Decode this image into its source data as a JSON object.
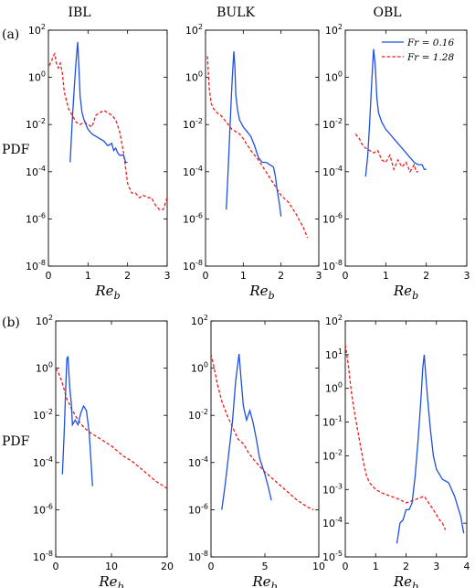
{
  "figure": {
    "column_titles": [
      "IBL",
      "BULK",
      "OBL"
    ],
    "row_labels": [
      "(a)",
      "(b)"
    ],
    "ylabel": "PDF",
    "xlabel_main": "Re",
    "xlabel_sub": "b",
    "colors": {
      "fr016": "#1f4fe0",
      "fr128": "#ee1c1c"
    },
    "legend": [
      {
        "name": "Fr = 0.16",
        "color": "#1f4fe0",
        "dash": "solid"
      },
      {
        "name": "Fr = 1.28",
        "color": "#ee1c1c",
        "dash": "dashed"
      }
    ]
  },
  "chart_data": [
    {
      "type": "line",
      "panel": "a-IBL",
      "xlim": [
        0,
        3
      ],
      "ylim": [
        -8,
        2
      ],
      "yscale": "log",
      "xticks": [
        "0",
        "1",
        "2",
        "3"
      ],
      "yticks": [
        "-8",
        "-6",
        "-4",
        "-2",
        "0",
        "2"
      ],
      "series": [
        {
          "name": "Fr = 0.16",
          "x": [
            0.55,
            0.6,
            0.65,
            0.7,
            0.74,
            0.77,
            0.8,
            0.85,
            0.9,
            1.0,
            1.1,
            1.2,
            1.3,
            1.4,
            1.5,
            1.6,
            1.65,
            1.7,
            1.75,
            1.8,
            1.9,
            1.95,
            2.0
          ],
          "y": [
            -3.6,
            -1.9,
            -0.5,
            0.7,
            1.5,
            0.4,
            -0.8,
            -1.5,
            -1.8,
            -2.2,
            -2.4,
            -2.5,
            -2.6,
            -2.7,
            -2.9,
            -2.8,
            -3.1,
            -3.0,
            -3.2,
            -3.3,
            -3.3,
            -3.6,
            -3.6
          ]
        },
        {
          "name": "Fr = 1.28",
          "x": [
            0.02,
            0.08,
            0.12,
            0.16,
            0.2,
            0.25,
            0.3,
            0.35,
            0.4,
            0.5,
            0.6,
            0.7,
            0.8,
            0.9,
            1.0,
            1.1,
            1.2,
            1.3,
            1.4,
            1.5,
            1.6,
            1.7,
            1.8,
            1.9,
            2.0,
            2.1,
            2.2,
            2.3,
            2.4,
            2.5,
            2.6,
            2.7,
            2.8,
            2.9,
            3.0
          ],
          "y": [
            0.5,
            0.7,
            0.9,
            1.0,
            0.6,
            0.4,
            0.6,
            0.2,
            -0.6,
            -1.3,
            -1.6,
            -1.9,
            -2.0,
            -1.9,
            -2.0,
            -2.1,
            -1.6,
            -1.5,
            -1.4,
            -1.5,
            -1.6,
            -1.8,
            -2.3,
            -3.2,
            -4.5,
            -4.9,
            -4.9,
            -5.1,
            -5.0,
            -5.1,
            -5.1,
            -5.4,
            -5.6,
            -5.6,
            -5.1
          ]
        }
      ]
    },
    {
      "type": "line",
      "panel": "a-BULK",
      "xlim": [
        0,
        3
      ],
      "ylim": [
        -8,
        2
      ],
      "yscale": "log",
      "xticks": [
        "0",
        "1",
        "2",
        "3"
      ],
      "yticks": [
        "-8",
        "-6",
        "-4",
        "-2",
        "0",
        "2"
      ],
      "series": [
        {
          "name": "Fr = 0.16",
          "x": [
            0.55,
            0.6,
            0.65,
            0.7,
            0.75,
            0.78,
            0.8,
            0.85,
            0.9,
            1.0,
            1.1,
            1.2,
            1.3,
            1.4,
            1.5,
            1.6,
            1.7,
            1.8,
            1.85,
            1.9,
            1.95,
            2.0
          ],
          "y": [
            -5.6,
            -3.9,
            -2.0,
            -0.3,
            1.1,
            0.4,
            -0.7,
            -1.4,
            -1.8,
            -2.1,
            -2.3,
            -2.5,
            -2.9,
            -3.4,
            -3.6,
            -3.6,
            -3.7,
            -3.8,
            -4.2,
            -4.8,
            -5.3,
            -5.9
          ]
        },
        {
          "name": "Fr = 1.28",
          "x": [
            0.05,
            0.1,
            0.15,
            0.2,
            0.3,
            0.4,
            0.5,
            0.6,
            0.7,
            0.8,
            0.9,
            1.0,
            1.2,
            1.4,
            1.6,
            1.8,
            2.0,
            2.2,
            2.4,
            2.5,
            2.6,
            2.7
          ],
          "y": [
            0.9,
            -0.5,
            -1.1,
            -1.3,
            -1.5,
            -1.6,
            -1.8,
            -2.0,
            -2.2,
            -2.3,
            -2.4,
            -2.6,
            -3.1,
            -3.5,
            -4.0,
            -4.5,
            -5.0,
            -5.3,
            -5.8,
            -6.1,
            -6.4,
            -6.8
          ]
        }
      ]
    },
    {
      "type": "line",
      "panel": "a-OBL",
      "xlim": [
        0,
        3
      ],
      "ylim": [
        -8,
        2
      ],
      "yscale": "log",
      "xticks": [
        "0",
        "1",
        "2",
        "3"
      ],
      "yticks": [
        "-8",
        "-6",
        "-4",
        "-2",
        "0",
        "2"
      ],
      "series": [
        {
          "name": "Fr = 0.16",
          "x": [
            0.5,
            0.55,
            0.6,
            0.65,
            0.7,
            0.74,
            0.78,
            0.82,
            0.9,
            1.0,
            1.1,
            1.2,
            1.3,
            1.4,
            1.5,
            1.6,
            1.7,
            1.8,
            1.9,
            1.95,
            2.0
          ],
          "y": [
            -4.2,
            -3.4,
            -2.0,
            -0.3,
            1.2,
            0.5,
            -0.9,
            -1.5,
            -1.9,
            -2.2,
            -2.4,
            -2.6,
            -2.8,
            -3.0,
            -3.2,
            -3.4,
            -3.6,
            -3.7,
            -3.7,
            -3.9,
            -3.9
          ]
        },
        {
          "name": "Fr = 1.28",
          "x": [
            0.25,
            0.3,
            0.35,
            0.4,
            0.5,
            0.6,
            0.7,
            0.8,
            0.9,
            1.0,
            1.1,
            1.2,
            1.3,
            1.4,
            1.5,
            1.6,
            1.7,
            1.75,
            1.8
          ],
          "y": [
            -2.4,
            -2.5,
            -2.6,
            -2.8,
            -3.0,
            -3.1,
            -3.2,
            -3.1,
            -3.5,
            -3.6,
            -3.3,
            -3.9,
            -3.5,
            -3.8,
            -3.6,
            -4.0,
            -3.7,
            -4.0,
            -4.0
          ]
        }
      ]
    },
    {
      "type": "line",
      "panel": "b-IBL",
      "xlim": [
        0,
        20
      ],
      "ylim": [
        -8,
        2
      ],
      "yscale": "log",
      "xticks": [
        "0",
        "10",
        "20"
      ],
      "yticks": [
        "-8",
        "-6",
        "-4",
        "-2",
        "0",
        "2"
      ],
      "series": [
        {
          "name": "Fr = 0.16",
          "x": [
            1.2,
            1.5,
            1.8,
            2.0,
            2.2,
            2.5,
            2.8,
            3.0,
            3.5,
            4.0,
            4.5,
            5.0,
            5.5,
            6.0,
            6.3,
            6.6
          ],
          "y": [
            -4.5,
            -2.8,
            -0.8,
            0.4,
            0.5,
            -0.8,
            -1.5,
            -2.4,
            -2.2,
            -2.4,
            -1.9,
            -1.6,
            -1.8,
            -2.7,
            -3.8,
            -5.0
          ]
        },
        {
          "name": "Fr = 1.28",
          "x": [
            0,
            0.5,
            1.0,
            1.5,
            2.0,
            3.0,
            4.0,
            5.0,
            6.0,
            8.0,
            10.0,
            12.0,
            14.0,
            16.0,
            18.0,
            20.0
          ],
          "y": [
            0.0,
            -0.2,
            -0.5,
            -0.9,
            -1.3,
            -1.8,
            -2.2,
            -2.5,
            -2.7,
            -3.0,
            -3.3,
            -3.7,
            -4.0,
            -4.4,
            -4.8,
            -5.1
          ]
        }
      ]
    },
    {
      "type": "line",
      "panel": "b-BULK",
      "xlim": [
        0,
        10
      ],
      "ylim": [
        -8,
        2
      ],
      "yscale": "log",
      "xticks": [
        "0",
        "5",
        "10"
      ],
      "yticks": [
        "-8",
        "-6",
        "-4",
        "-2",
        "0",
        "2"
      ],
      "series": [
        {
          "name": "Fr = 0.16",
          "x": [
            1.0,
            1.3,
            1.6,
            2.0,
            2.3,
            2.6,
            2.8,
            3.0,
            3.3,
            3.6,
            3.9,
            4.2,
            4.5,
            5.0,
            5.3,
            5.6
          ],
          "y": [
            -6.0,
            -5.0,
            -3.8,
            -2.2,
            -0.5,
            0.6,
            -0.5,
            -1.6,
            -2.2,
            -1.8,
            -2.3,
            -3.0,
            -3.8,
            -4.5,
            -5.0,
            -5.6
          ]
        },
        {
          "name": "Fr = 1.28",
          "x": [
            0,
            0.3,
            0.6,
            1.0,
            1.5,
            2.0,
            2.5,
            3.0,
            3.5,
            4.0,
            5.0,
            6.0,
            7.0,
            8.0,
            9.0,
            9.5
          ],
          "y": [
            0.6,
            0.0,
            -0.7,
            -1.4,
            -2.0,
            -2.5,
            -3.0,
            -3.2,
            -3.6,
            -3.9,
            -4.4,
            -4.8,
            -5.2,
            -5.6,
            -5.9,
            -6.0
          ]
        }
      ]
    },
    {
      "type": "line",
      "panel": "b-OBL",
      "xlim": [
        0,
        4
      ],
      "ylim": [
        -5,
        2
      ],
      "yscale": "log",
      "xticks": [
        "0",
        "1",
        "2",
        "3",
        "4"
      ],
      "yticks": [
        "-5",
        "-4",
        "-3",
        "-2",
        "-1",
        "0",
        "1",
        "2"
      ],
      "series": [
        {
          "name": "Fr = 0.16",
          "x": [
            1.7,
            1.8,
            1.9,
            2.0,
            2.1,
            2.2,
            2.3,
            2.4,
            2.5,
            2.55,
            2.6,
            2.7,
            2.8,
            2.9,
            3.0,
            3.2,
            3.4,
            3.6,
            3.8,
            3.9
          ],
          "y": [
            -4.6,
            -4.0,
            -3.9,
            -3.6,
            -3.6,
            -3.4,
            -2.6,
            -1.5,
            -0.2,
            0.6,
            1.0,
            -0.2,
            -1.2,
            -2.0,
            -2.4,
            -2.7,
            -2.8,
            -3.2,
            -3.8,
            -4.3
          ]
        },
        {
          "name": "Fr = 1.28",
          "x": [
            0,
            0.1,
            0.2,
            0.3,
            0.4,
            0.5,
            0.6,
            0.7,
            0.8,
            1.0,
            1.2,
            1.5,
            1.8,
            2.0,
            2.3,
            2.6,
            2.9,
            3.1,
            3.2,
            3.3
          ],
          "y": [
            1.3,
            0.7,
            -0.1,
            -0.7,
            -1.2,
            -1.7,
            -2.2,
            -2.6,
            -2.8,
            -3.0,
            -3.1,
            -3.2,
            -3.3,
            -3.4,
            -3.3,
            -3.2,
            -3.6,
            -3.9,
            -4.0,
            -4.2
          ]
        }
      ]
    }
  ]
}
